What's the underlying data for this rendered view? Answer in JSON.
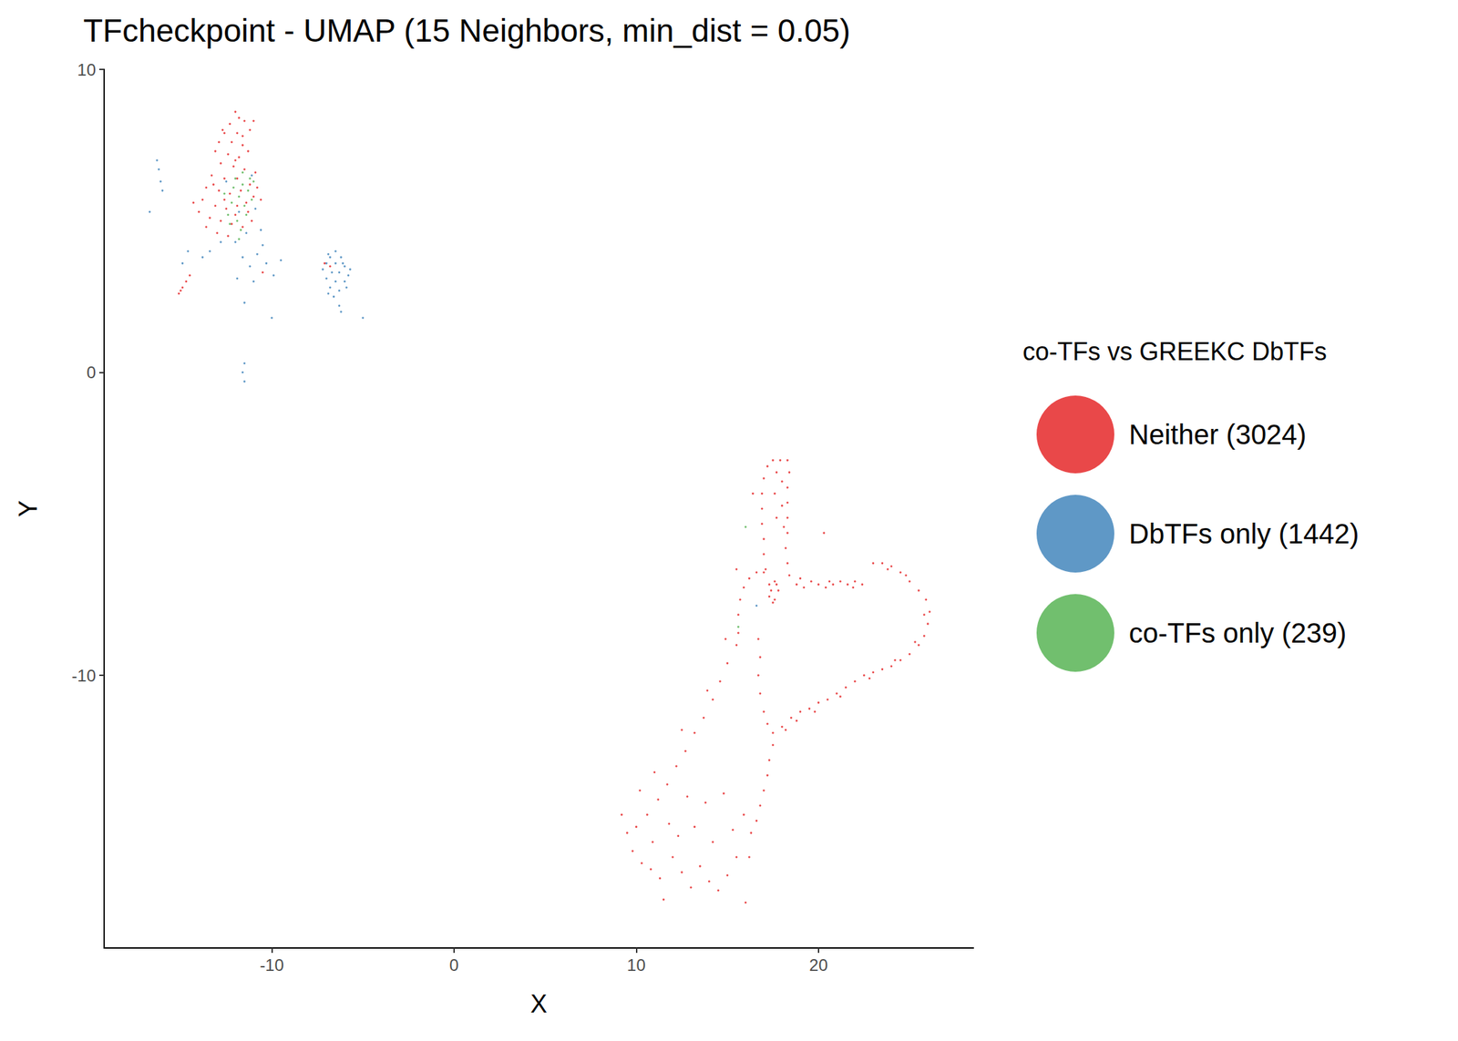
{
  "chart_data": {
    "type": "scatter",
    "title": "TFcheckpoint - UMAP (15 Neighbors, min_dist = 0.05)",
    "x_label": "X",
    "y_label": "Y",
    "legend_title": "co-TFs vs GREEKC DbTFs",
    "legend": "right",
    "grid": false,
    "marker": "circle",
    "xlim": [
      -19.2,
      28.5
    ],
    "xticks": [
      -10,
      0,
      10,
      20
    ],
    "ylim": [
      -19,
      10
    ],
    "yticks": [
      -10,
      0,
      10
    ],
    "series": [
      {
        "name": "Neither (3024)",
        "color": "#e41a1c",
        "values": [
          [
            -12.0,
            8.6
          ],
          [
            -11.8,
            8.4
          ],
          [
            -12.3,
            8.2
          ],
          [
            -11.5,
            8.3
          ],
          [
            -12.6,
            7.9
          ],
          [
            -11.9,
            7.9
          ],
          [
            -11.2,
            8.0
          ],
          [
            -12.9,
            7.6
          ],
          [
            -12.2,
            7.6
          ],
          [
            -11.6,
            7.5
          ],
          [
            -13.1,
            7.3
          ],
          [
            -12.4,
            7.2
          ],
          [
            -11.8,
            7.1
          ],
          [
            -11.3,
            7.3
          ],
          [
            -12.8,
            6.9
          ],
          [
            -12.1,
            6.8
          ],
          [
            -11.5,
            6.7
          ],
          [
            -10.9,
            6.6
          ],
          [
            -13.3,
            6.5
          ],
          [
            -12.6,
            6.4
          ],
          [
            -11.9,
            6.4
          ],
          [
            -11.2,
            6.2
          ],
          [
            -13.6,
            6.1
          ],
          [
            -12.9,
            6.0
          ],
          [
            -12.3,
            5.9
          ],
          [
            -11.7,
            6.0
          ],
          [
            -11.0,
            5.8
          ],
          [
            -13.8,
            5.7
          ],
          [
            -13.1,
            5.5
          ],
          [
            -12.5,
            5.4
          ],
          [
            -11.9,
            5.5
          ],
          [
            -11.3,
            5.3
          ],
          [
            -14.0,
            5.3
          ],
          [
            -13.4,
            5.1
          ],
          [
            -12.8,
            5.0
          ],
          [
            -12.2,
            4.9
          ],
          [
            -11.6,
            4.8
          ],
          [
            -13.0,
            4.6
          ],
          [
            -12.4,
            4.5
          ],
          [
            -11.1,
            5.0
          ],
          [
            -10.6,
            5.7
          ],
          [
            -14.3,
            5.6
          ],
          [
            -12.0,
            7.0
          ],
          [
            -12.7,
            8.0
          ],
          [
            -11.0,
            8.3
          ],
          [
            -15.1,
            2.6
          ],
          [
            -14.9,
            2.8
          ],
          [
            -14.7,
            3.0
          ],
          [
            -14.5,
            3.2
          ],
          [
            -15.0,
            2.7
          ],
          [
            -7.1,
            3.6
          ],
          [
            -6.8,
            3.5
          ],
          [
            -10.5,
            3.3
          ],
          [
            -12.6,
            5.7
          ],
          [
            -13.2,
            6.2
          ],
          [
            -11.4,
            5.6
          ],
          [
            -10.8,
            6.1
          ],
          [
            -12.0,
            5.2
          ],
          [
            -13.6,
            4.8
          ],
          [
            -11.6,
            7.8
          ],
          [
            17.0,
            -3.5
          ],
          [
            16.9,
            -4.0
          ],
          [
            16.9,
            -4.5
          ],
          [
            16.9,
            -5.0
          ],
          [
            17.0,
            -5.5
          ],
          [
            17.0,
            -6.0
          ],
          [
            17.1,
            -6.5
          ],
          [
            17.2,
            -3.1
          ],
          [
            17.5,
            -2.9
          ],
          [
            17.9,
            -2.9
          ],
          [
            18.3,
            -2.9
          ],
          [
            17.7,
            -3.3
          ],
          [
            18.0,
            -3.6
          ],
          [
            17.6,
            -4.0
          ],
          [
            18.0,
            -4.4
          ],
          [
            17.7,
            -4.8
          ],
          [
            18.1,
            -5.1
          ],
          [
            18.4,
            -3.3
          ],
          [
            18.3,
            -3.8
          ],
          [
            18.3,
            -4.3
          ],
          [
            18.3,
            -4.8
          ],
          [
            18.3,
            -5.3
          ],
          [
            18.2,
            -5.8
          ],
          [
            18.3,
            -6.3
          ],
          [
            18.4,
            -6.7
          ],
          [
            18.8,
            -7.0
          ],
          [
            19.2,
            -7.1
          ],
          [
            19.6,
            -6.9
          ],
          [
            20.0,
            -7.0
          ],
          [
            20.4,
            -7.1
          ],
          [
            20.8,
            -7.0
          ],
          [
            21.2,
            -6.9
          ],
          [
            21.6,
            -7.0
          ],
          [
            22.0,
            -6.9
          ],
          [
            22.4,
            -7.0
          ],
          [
            19.0,
            -6.8
          ],
          [
            20.6,
            -6.9
          ],
          [
            21.9,
            -7.1
          ],
          [
            17.3,
            -7.0
          ],
          [
            17.6,
            -6.9
          ],
          [
            17.8,
            -7.2
          ],
          [
            17.6,
            -7.5
          ],
          [
            17.3,
            -7.4
          ],
          [
            17.4,
            -7.2
          ],
          [
            17.7,
            -7.0
          ],
          [
            17.5,
            -7.6
          ],
          [
            17.0,
            -6.6
          ],
          [
            16.6,
            -6.6
          ],
          [
            16.2,
            -6.8
          ],
          [
            15.9,
            -7.1
          ],
          [
            15.7,
            -7.5
          ],
          [
            15.6,
            -8.0
          ],
          [
            15.6,
            -8.6
          ],
          [
            23.0,
            -6.3
          ],
          [
            23.5,
            -6.3
          ],
          [
            24.0,
            -6.4
          ],
          [
            24.5,
            -6.6
          ],
          [
            25.0,
            -6.9
          ],
          [
            25.5,
            -7.2
          ],
          [
            25.9,
            -7.5
          ],
          [
            26.1,
            -7.9
          ],
          [
            26.0,
            -8.3
          ],
          [
            25.8,
            -8.7
          ],
          [
            25.5,
            -9.0
          ],
          [
            25.0,
            -9.3
          ],
          [
            24.5,
            -9.5
          ],
          [
            24.0,
            -9.7
          ],
          [
            23.5,
            -9.8
          ],
          [
            23.0,
            -9.9
          ],
          [
            22.5,
            -10.0
          ],
          [
            22.0,
            -10.2
          ],
          [
            21.5,
            -10.4
          ],
          [
            21.0,
            -10.6
          ],
          [
            20.5,
            -10.8
          ],
          [
            20.0,
            -10.9
          ],
          [
            19.5,
            -11.1
          ],
          [
            19.0,
            -11.2
          ],
          [
            18.5,
            -11.4
          ],
          [
            18.0,
            -11.7
          ],
          [
            17.5,
            -11.9
          ],
          [
            17.2,
            -11.6
          ],
          [
            17.0,
            -11.2
          ],
          [
            16.8,
            -10.6
          ],
          [
            16.7,
            -10.0
          ],
          [
            16.8,
            -9.4
          ],
          [
            16.7,
            -8.8
          ],
          [
            18.2,
            -11.8
          ],
          [
            18.8,
            -11.5
          ],
          [
            19.8,
            -11.2
          ],
          [
            21.2,
            -10.7
          ],
          [
            22.8,
            -10.1
          ],
          [
            24.2,
            -9.5
          ],
          [
            25.3,
            -8.9
          ],
          [
            25.8,
            -8.0
          ],
          [
            24.8,
            -6.7
          ],
          [
            23.8,
            -6.5
          ],
          [
            15.5,
            -9.0
          ],
          [
            15.0,
            -9.6
          ],
          [
            14.6,
            -10.2
          ],
          [
            14.2,
            -10.8
          ],
          [
            13.7,
            -11.4
          ],
          [
            13.2,
            -11.9
          ],
          [
            12.7,
            -12.5
          ],
          [
            12.2,
            -13.0
          ],
          [
            11.7,
            -13.6
          ],
          [
            11.2,
            -14.1
          ],
          [
            10.6,
            -14.6
          ],
          [
            10.0,
            -15.0
          ],
          [
            14.9,
            -8.8
          ],
          [
            13.9,
            -10.5
          ],
          [
            12.5,
            -11.8
          ],
          [
            11.0,
            -13.2
          ],
          [
            17.5,
            -12.3
          ],
          [
            17.3,
            -12.8
          ],
          [
            17.2,
            -13.3
          ],
          [
            17.0,
            -13.8
          ],
          [
            16.8,
            -14.3
          ],
          [
            16.6,
            -14.8
          ],
          [
            16.3,
            -15.2
          ],
          [
            9.2,
            -14.6
          ],
          [
            9.5,
            -15.2
          ],
          [
            9.8,
            -15.8
          ],
          [
            10.3,
            -16.2
          ],
          [
            10.8,
            -16.4
          ],
          [
            11.3,
            -16.7
          ],
          [
            11.5,
            -17.4
          ],
          [
            12.0,
            -16.0
          ],
          [
            12.5,
            -16.5
          ],
          [
            13.0,
            -17.0
          ],
          [
            13.5,
            -16.3
          ],
          [
            14.0,
            -16.8
          ],
          [
            14.5,
            -17.1
          ],
          [
            15.0,
            -16.6
          ],
          [
            15.5,
            -16.0
          ],
          [
            16.0,
            -17.5
          ],
          [
            16.2,
            -16.0
          ],
          [
            12.3,
            -15.3
          ],
          [
            13.2,
            -15.0
          ],
          [
            14.2,
            -15.5
          ],
          [
            15.3,
            -15.1
          ],
          [
            10.9,
            -15.5
          ],
          [
            11.8,
            -14.9
          ],
          [
            13.8,
            -14.2
          ],
          [
            14.8,
            -13.9
          ],
          [
            15.9,
            -14.6
          ],
          [
            12.8,
            -14.0
          ],
          [
            10.2,
            -13.8
          ],
          [
            20.3,
            -5.3
          ],
          [
            16.4,
            -4.0
          ],
          [
            15.5,
            -6.5
          ]
        ]
      },
      {
        "name": "DbTFs only (1442)",
        "color": "#377eb8",
        "values": [
          [
            -6.5,
            4.0
          ],
          [
            -6.8,
            3.8
          ],
          [
            -6.2,
            3.8
          ],
          [
            -7.0,
            3.6
          ],
          [
            -6.5,
            3.6
          ],
          [
            -6.0,
            3.5
          ],
          [
            -7.2,
            3.4
          ],
          [
            -6.7,
            3.3
          ],
          [
            -6.3,
            3.3
          ],
          [
            -5.8,
            3.2
          ],
          [
            -7.0,
            3.1
          ],
          [
            -6.5,
            3.0
          ],
          [
            -6.0,
            3.0
          ],
          [
            -6.8,
            2.8
          ],
          [
            -6.3,
            2.7
          ],
          [
            -5.9,
            2.8
          ],
          [
            -6.6,
            2.5
          ],
          [
            -6.3,
            2.2
          ],
          [
            -6.2,
            2.0
          ],
          [
            -5.0,
            1.8
          ],
          [
            -6.9,
            3.9
          ],
          [
            -6.1,
            3.6
          ],
          [
            -5.7,
            3.4
          ],
          [
            -6.9,
            2.6
          ],
          [
            -16.3,
            7.0
          ],
          [
            -16.2,
            6.7
          ],
          [
            -16.1,
            6.3
          ],
          [
            -16.0,
            6.0
          ],
          [
            -16.7,
            5.3
          ],
          [
            -14.6,
            4.0
          ],
          [
            -14.9,
            3.6
          ],
          [
            -12.0,
            4.3
          ],
          [
            -11.6,
            3.8
          ],
          [
            -11.2,
            3.5
          ],
          [
            -10.8,
            3.9
          ],
          [
            -10.3,
            3.6
          ],
          [
            -9.9,
            3.2
          ],
          [
            -9.5,
            3.7
          ],
          [
            -11.0,
            3.0
          ],
          [
            -10.5,
            4.2
          ],
          [
            -11.4,
            4.6
          ],
          [
            -13.4,
            4.0
          ],
          [
            -12.8,
            4.3
          ],
          [
            -11.8,
            5.3
          ],
          [
            -10.9,
            5.4
          ],
          [
            -11.1,
            6.5
          ],
          [
            -12.5,
            6.3
          ],
          [
            -11.5,
            2.3
          ],
          [
            -10.0,
            1.8
          ],
          [
            -11.5,
            0.3
          ],
          [
            -11.6,
            0.0
          ],
          [
            -11.5,
            -0.3
          ],
          [
            -13.8,
            3.8
          ],
          [
            -10.6,
            4.7
          ],
          [
            -11.9,
            3.1
          ],
          [
            16.6,
            -7.7
          ]
        ]
      },
      {
        "name": "co-TFs only (239)",
        "color": "#4daf4a",
        "values": [
          [
            -12.0,
            6.4
          ],
          [
            -11.6,
            6.2
          ],
          [
            -11.3,
            6.0
          ],
          [
            -11.8,
            5.8
          ],
          [
            -12.2,
            5.6
          ],
          [
            -11.5,
            5.5
          ],
          [
            -11.1,
            5.7
          ],
          [
            -12.4,
            5.2
          ],
          [
            -11.9,
            5.0
          ],
          [
            -11.7,
            4.7
          ],
          [
            -11.2,
            6.4
          ],
          [
            -12.1,
            6.1
          ],
          [
            -11.4,
            5.2
          ],
          [
            -12.6,
            5.9
          ],
          [
            -11.0,
            6.3
          ],
          [
            -11.8,
            4.4
          ],
          [
            16.0,
            -5.1
          ],
          [
            15.6,
            -8.4
          ],
          [
            -12.3,
            4.9
          ],
          [
            -11.6,
            6.6
          ]
        ]
      }
    ]
  }
}
